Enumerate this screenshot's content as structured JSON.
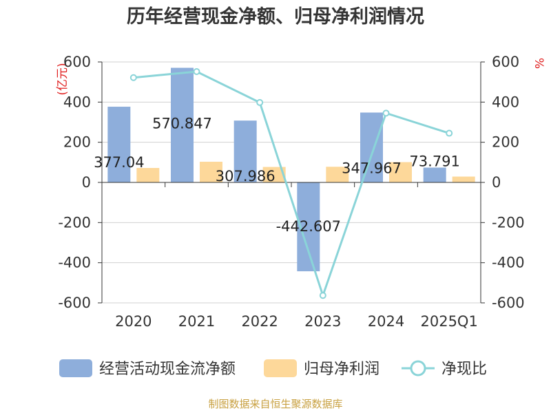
{
  "chart_data": {
    "type": "bar",
    "title": "历年经营现金净额、归母净利润情况",
    "left_axis_unit": "(亿元)",
    "right_axis_unit": "%",
    "categories": [
      "2020",
      "2021",
      "2022",
      "2023",
      "2024",
      "2025Q1"
    ],
    "ylim": [
      -600,
      600
    ],
    "y2lim": [
      -600,
      600
    ],
    "yticks": [
      600,
      400,
      200,
      0,
      -200,
      -400,
      -600
    ],
    "y2ticks": [
      600,
      400,
      200,
      0,
      -200,
      -400,
      -600
    ],
    "grid": true,
    "legend_position": "bottom",
    "series": [
      {
        "name": "经营活动现金流净额",
        "type": "bar",
        "axis": "left",
        "color": "#8eaedb",
        "values": [
          377.04,
          570.847,
          307.986,
          -442.607,
          347.967,
          73.791
        ],
        "labels": [
          "377.04",
          "570.847",
          "307.986",
          "-442.607",
          "347.967",
          "73.791"
        ]
      },
      {
        "name": "归母净利润",
        "type": "bar",
        "axis": "left",
        "color": "#fdd89a",
        "values": [
          72,
          103,
          77,
          78,
          101,
          29
        ]
      },
      {
        "name": "净现比",
        "type": "line",
        "axis": "right",
        "color": "#8ad4d8",
        "values": [
          522,
          552,
          398,
          -563,
          345,
          245
        ]
      }
    ],
    "source": "制图数据来自恒生聚源数据库"
  }
}
